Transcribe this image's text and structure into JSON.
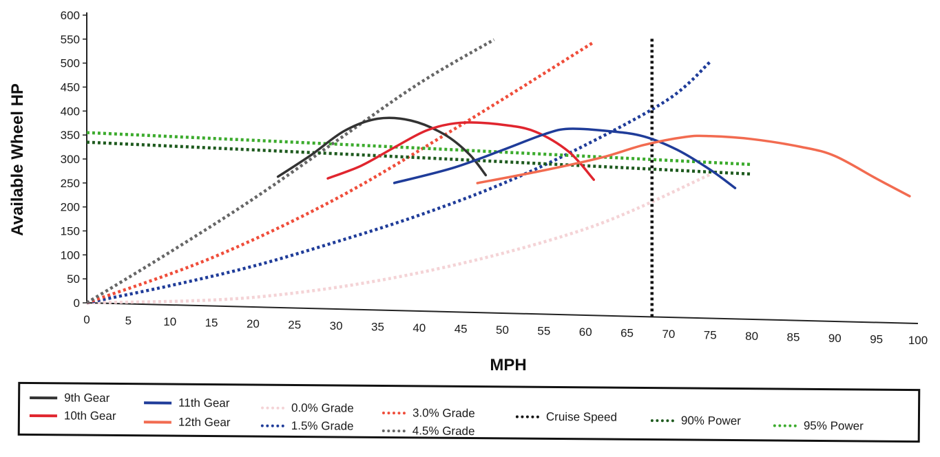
{
  "chart_data": {
    "type": "line",
    "xlabel": "MPH",
    "ylabel": "Available Wheel HP",
    "xlim": [
      0,
      100
    ],
    "ylim": [
      0,
      600
    ],
    "x_ticks": [
      0,
      5,
      10,
      15,
      20,
      25,
      30,
      35,
      40,
      45,
      50,
      55,
      60,
      65,
      70,
      75,
      80,
      85,
      90,
      95,
      100
    ],
    "y_ticks": [
      0,
      50,
      100,
      150,
      200,
      250,
      300,
      350,
      400,
      450,
      500,
      550,
      600
    ],
    "grid": false,
    "legend_position": "bottom",
    "series": [
      {
        "name": "9th Gear",
        "style": "solid",
        "color": "#333333",
        "points": [
          [
            23,
            273
          ],
          [
            27,
            320
          ],
          [
            31,
            372
          ],
          [
            35,
            399
          ],
          [
            39,
            397
          ],
          [
            43,
            370
          ],
          [
            46,
            330
          ],
          [
            48,
            287
          ]
        ]
      },
      {
        "name": "10th Gear",
        "style": "solid",
        "color": "#e0252e",
        "points": [
          [
            29,
            272
          ],
          [
            33,
            300
          ],
          [
            37,
            340
          ],
          [
            41,
            378
          ],
          [
            45,
            395
          ],
          [
            50,
            393
          ],
          [
            54,
            380
          ],
          [
            58,
            340
          ],
          [
            61,
            283
          ]
        ]
      },
      {
        "name": "11th Gear",
        "style": "solid",
        "color": "#1f3c99",
        "points": [
          [
            37,
            266
          ],
          [
            44,
            300
          ],
          [
            50,
            340
          ],
          [
            55,
            375
          ],
          [
            58,
            388
          ],
          [
            63,
            385
          ],
          [
            67,
            376
          ],
          [
            71,
            350
          ],
          [
            75,
            310
          ],
          [
            78,
            273
          ]
        ]
      },
      {
        "name": "12th Gear",
        "style": "solid",
        "color": "#f26b50",
        "points": [
          [
            47,
            270
          ],
          [
            55,
            300
          ],
          [
            62,
            330
          ],
          [
            67,
            358
          ],
          [
            72,
            377
          ],
          [
            75,
            380
          ],
          [
            80,
            376
          ],
          [
            86,
            362
          ],
          [
            90,
            345
          ],
          [
            95,
            300
          ],
          [
            99,
            265
          ]
        ]
      },
      {
        "name": "0.0% Grade",
        "style": "dotted",
        "color": "#f4d3d6",
        "points": [
          [
            0,
            0
          ],
          [
            20,
            20
          ],
          [
            40,
            80
          ],
          [
            60,
            180
          ],
          [
            75,
            300
          ]
        ]
      },
      {
        "name": "1.5% Grade",
        "style": "dotted",
        "color": "#1f3c99",
        "points": [
          [
            0,
            0
          ],
          [
            10,
            40
          ],
          [
            20,
            85
          ],
          [
            30,
            140
          ],
          [
            40,
            200
          ],
          [
            50,
            270
          ],
          [
            60,
            355
          ],
          [
            70,
            455
          ],
          [
            75,
            535
          ]
        ]
      },
      {
        "name": "3.0% Grade",
        "style": "dotted",
        "color": "#ef4d3a",
        "points": [
          [
            0,
            0
          ],
          [
            15,
            100
          ],
          [
            30,
            230
          ],
          [
            45,
            390
          ],
          [
            61,
            570
          ]
        ]
      },
      {
        "name": "4.5% Grade",
        "style": "dotted",
        "color": "#666666",
        "points": [
          [
            0,
            0
          ],
          [
            10,
            110
          ],
          [
            20,
            225
          ],
          [
            30,
            350
          ],
          [
            40,
            475
          ],
          [
            49,
            570
          ]
        ]
      },
      {
        "name": "Cruise Speed",
        "style": "dotted",
        "color": "#111111",
        "points": [
          [
            68,
            0
          ],
          [
            68,
            580
          ]
        ]
      },
      {
        "name": "90% Power",
        "style": "dotted",
        "color": "#1e5a1e",
        "points": [
          [
            0,
            335
          ],
          [
            40,
            320
          ],
          [
            80,
            303
          ]
        ]
      },
      {
        "name": "95% Power",
        "style": "dotted",
        "color": "#3cab2d",
        "points": [
          [
            0,
            355
          ],
          [
            40,
            340
          ],
          [
            80,
            323
          ]
        ]
      }
    ]
  }
}
